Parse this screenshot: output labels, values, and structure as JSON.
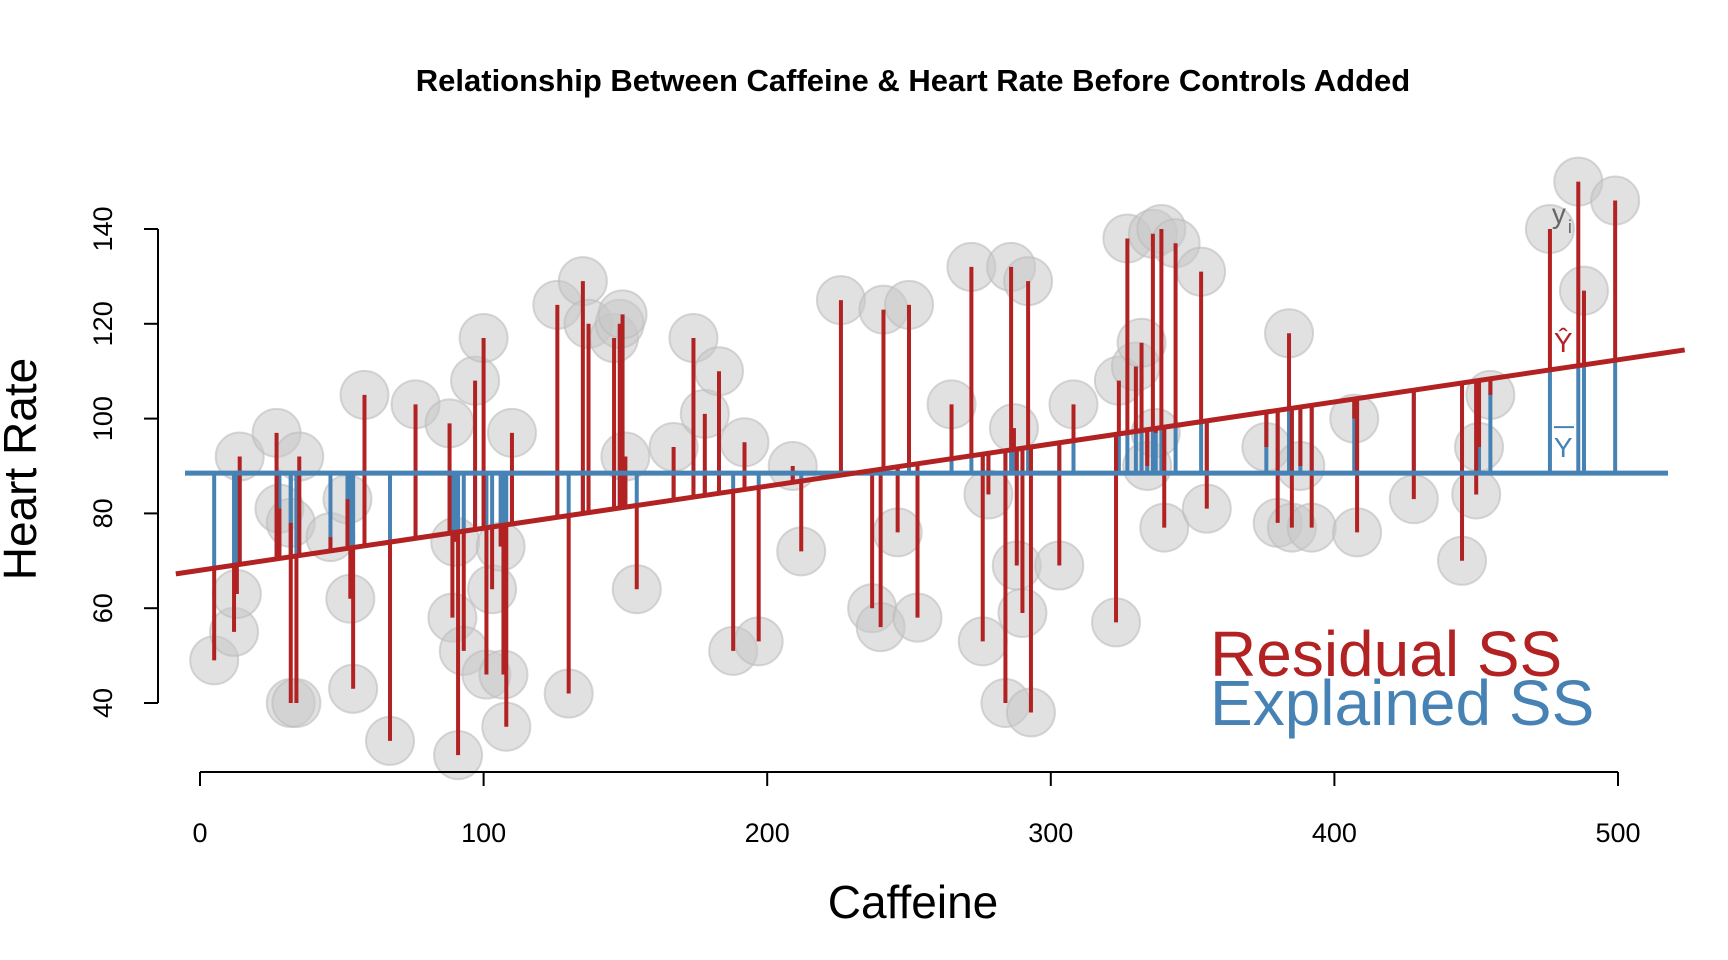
{
  "chart_data": {
    "type": "scatter",
    "title": "Relationship Between Caffeine & Heart Rate Before Controls Added",
    "xlabel": "Caffeine",
    "ylabel": "Heart Rate",
    "xlim": [
      -5,
      520
    ],
    "ylim": [
      25,
      155
    ],
    "xticks": [
      0,
      100,
      200,
      300,
      400,
      500
    ],
    "yticks": [
      40,
      60,
      80,
      100,
      120,
      140
    ],
    "mean_y": 88.5,
    "regression": {
      "intercept": 68,
      "slope": 0.0888
    },
    "colors": {
      "residual": "#b22222",
      "explained": "#4682b4",
      "point": "#c8c8c8",
      "point_stroke": "#bdbdbd",
      "annotation": "#666666"
    },
    "legend": {
      "position": "bottom-right",
      "entries": [
        "Residual SS",
        "Explained SS"
      ]
    },
    "annotations": {
      "yi": "y",
      "yi_sub": "i",
      "yhat": "Ŷ",
      "ybar": "Y"
    },
    "points": [
      {
        "x": 5,
        "y": 49
      },
      {
        "x": 12,
        "y": 55
      },
      {
        "x": 13,
        "y": 63
      },
      {
        "x": 14,
        "y": 92
      },
      {
        "x": 27,
        "y": 97
      },
      {
        "x": 28,
        "y": 81
      },
      {
        "x": 32,
        "y": 78
      },
      {
        "x": 32,
        "y": 40
      },
      {
        "x": 34,
        "y": 40
      },
      {
        "x": 35,
        "y": 92
      },
      {
        "x": 46,
        "y": 75
      },
      {
        "x": 52,
        "y": 83
      },
      {
        "x": 53,
        "y": 62
      },
      {
        "x": 54,
        "y": 43
      },
      {
        "x": 58,
        "y": 105
      },
      {
        "x": 67,
        "y": 32
      },
      {
        "x": 76,
        "y": 103
      },
      {
        "x": 88,
        "y": 99
      },
      {
        "x": 89,
        "y": 58
      },
      {
        "x": 90,
        "y": 74
      },
      {
        "x": 91,
        "y": 29
      },
      {
        "x": 93,
        "y": 51
      },
      {
        "x": 97,
        "y": 108
      },
      {
        "x": 100,
        "y": 117
      },
      {
        "x": 101,
        "y": 46
      },
      {
        "x": 103,
        "y": 64
      },
      {
        "x": 106,
        "y": 73
      },
      {
        "x": 107,
        "y": 46
      },
      {
        "x": 108,
        "y": 35
      },
      {
        "x": 110,
        "y": 97
      },
      {
        "x": 126,
        "y": 124
      },
      {
        "x": 130,
        "y": 42
      },
      {
        "x": 135,
        "y": 129
      },
      {
        "x": 137,
        "y": 120
      },
      {
        "x": 146,
        "y": 117
      },
      {
        "x": 148,
        "y": 120
      },
      {
        "x": 149,
        "y": 122
      },
      {
        "x": 150,
        "y": 92
      },
      {
        "x": 154,
        "y": 64
      },
      {
        "x": 167,
        "y": 94
      },
      {
        "x": 174,
        "y": 117
      },
      {
        "x": 178,
        "y": 101
      },
      {
        "x": 183,
        "y": 110
      },
      {
        "x": 188,
        "y": 51
      },
      {
        "x": 192,
        "y": 95
      },
      {
        "x": 197,
        "y": 53
      },
      {
        "x": 209,
        "y": 90
      },
      {
        "x": 212,
        "y": 72
      },
      {
        "x": 226,
        "y": 125
      },
      {
        "x": 237,
        "y": 60
      },
      {
        "x": 240,
        "y": 56
      },
      {
        "x": 241,
        "y": 123
      },
      {
        "x": 246,
        "y": 76
      },
      {
        "x": 250,
        "y": 124
      },
      {
        "x": 253,
        "y": 58
      },
      {
        "x": 265,
        "y": 103
      },
      {
        "x": 272,
        "y": 132
      },
      {
        "x": 276,
        "y": 53
      },
      {
        "x": 278,
        "y": 84
      },
      {
        "x": 284,
        "y": 40
      },
      {
        "x": 286,
        "y": 132
      },
      {
        "x": 287,
        "y": 98
      },
      {
        "x": 288,
        "y": 69
      },
      {
        "x": 290,
        "y": 59
      },
      {
        "x": 292,
        "y": 129
      },
      {
        "x": 293,
        "y": 38
      },
      {
        "x": 303,
        "y": 69
      },
      {
        "x": 308,
        "y": 103
      },
      {
        "x": 323,
        "y": 57
      },
      {
        "x": 324,
        "y": 108
      },
      {
        "x": 327,
        "y": 138
      },
      {
        "x": 330,
        "y": 111
      },
      {
        "x": 332,
        "y": 116
      },
      {
        "x": 334,
        "y": 90
      },
      {
        "x": 336,
        "y": 139
      },
      {
        "x": 337,
        "y": 97
      },
      {
        "x": 339,
        "y": 140
      },
      {
        "x": 340,
        "y": 77
      },
      {
        "x": 344,
        "y": 137
      },
      {
        "x": 353,
        "y": 131
      },
      {
        "x": 355,
        "y": 81
      },
      {
        "x": 376,
        "y": 94
      },
      {
        "x": 380,
        "y": 78
      },
      {
        "x": 384,
        "y": 118
      },
      {
        "x": 385,
        "y": 77
      },
      {
        "x": 388,
        "y": 90
      },
      {
        "x": 392,
        "y": 77
      },
      {
        "x": 407,
        "y": 100
      },
      {
        "x": 408,
        "y": 76
      },
      {
        "x": 428,
        "y": 83
      },
      {
        "x": 445,
        "y": 70
      },
      {
        "x": 450,
        "y": 84
      },
      {
        "x": 451,
        "y": 94
      },
      {
        "x": 455,
        "y": 105
      },
      {
        "x": 476,
        "y": 140
      },
      {
        "x": 486,
        "y": 150
      },
      {
        "x": 488,
        "y": 127
      },
      {
        "x": 499,
        "y": 146
      }
    ]
  }
}
